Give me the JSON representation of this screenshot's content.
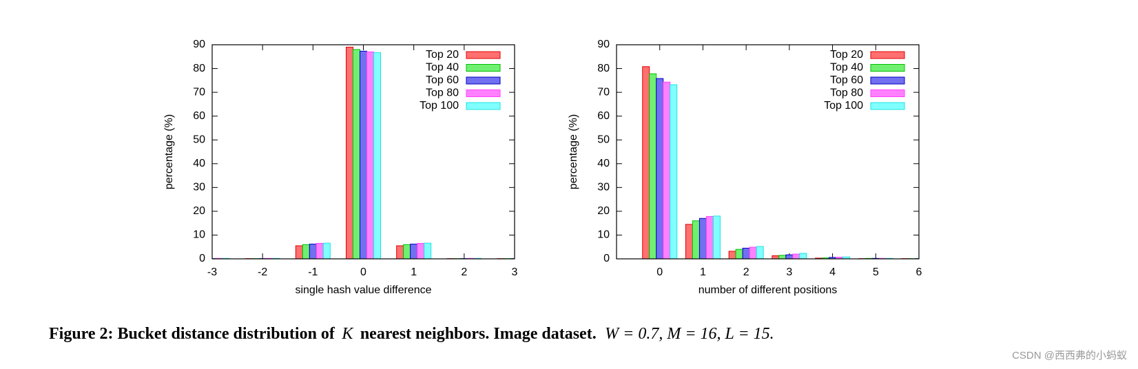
{
  "chart_data": [
    {
      "type": "bar",
      "xlabel": "single hash value difference",
      "ylabel": "percentage (%)",
      "x": [
        -3,
        -2,
        -1,
        0,
        1,
        2,
        3
      ],
      "xlim": [
        -3,
        3
      ],
      "xticks": [
        -3,
        -2,
        -1,
        0,
        1,
        2,
        3
      ],
      "ylim": [
        0,
        90
      ],
      "yticks": [
        0,
        10,
        20,
        30,
        40,
        50,
        60,
        70,
        80,
        90
      ],
      "legend": "top-right",
      "series": [
        {
          "name": "Top 20",
          "color": "#ff7070",
          "edge": "#e00000",
          "values": [
            0.1,
            0.1,
            5.5,
            89,
            5.5,
            0.1,
            0.1
          ]
        },
        {
          "name": "Top 40",
          "color": "#70f070",
          "edge": "#00c000",
          "values": [
            0.1,
            0.1,
            6,
            88,
            6,
            0.1,
            0.1
          ]
        },
        {
          "name": "Top 60",
          "color": "#7070f0",
          "edge": "#0000c0",
          "values": [
            0.1,
            0.1,
            6.2,
            87.3,
            6.2,
            0.1,
            0.1
          ]
        },
        {
          "name": "Top 80",
          "color": "#ff80ff",
          "edge": "#ff40ff",
          "values": [
            0.2,
            0.2,
            6.5,
            87,
            6.5,
            0.2,
            0.2
          ]
        },
        {
          "name": "Top 100",
          "color": "#80ffff",
          "edge": "#20e0e0",
          "values": [
            0.2,
            0.2,
            6.6,
            86.7,
            6.6,
            0.2,
            0.2
          ]
        }
      ]
    },
    {
      "type": "bar",
      "xlabel": "number of different positions",
      "ylabel": "percentage (%)",
      "x": [
        0,
        1,
        2,
        3,
        4,
        5,
        6
      ],
      "xlim": [
        -1,
        6
      ],
      "xticks": [
        0,
        1,
        2,
        3,
        4,
        5,
        6
      ],
      "ylim": [
        0,
        90
      ],
      "yticks": [
        0,
        10,
        20,
        30,
        40,
        50,
        60,
        70,
        80,
        90
      ],
      "legend": "top-right",
      "series": [
        {
          "name": "Top 20",
          "color": "#ff7070",
          "edge": "#e00000",
          "values": [
            80.8,
            14.5,
            3.2,
            1.3,
            0.3,
            0.1,
            0.1
          ]
        },
        {
          "name": "Top 40",
          "color": "#70f070",
          "edge": "#00c000",
          "values": [
            77.8,
            16,
            4,
            1.5,
            0.4,
            0.2,
            0.1
          ]
        },
        {
          "name": "Top 60",
          "color": "#7070f0",
          "edge": "#0000c0",
          "values": [
            75.8,
            17,
            4.5,
            1.7,
            0.6,
            0.2,
            0.1
          ]
        },
        {
          "name": "Top 80",
          "color": "#ff80ff",
          "edge": "#ff40ff",
          "values": [
            74.3,
            17.8,
            4.9,
            2,
            0.7,
            0.2,
            0.1
          ]
        },
        {
          "name": "Top 100",
          "color": "#80ffff",
          "edge": "#20e0e0",
          "values": [
            73.2,
            18,
            5.2,
            2.3,
            0.8,
            0.2,
            0.1
          ]
        }
      ]
    }
  ],
  "caption": {
    "label": "Figure 2: Bucket distance distribution of",
    "k": "K",
    "rest": "nearest neighbors. Image dataset.",
    "params": "W = 0.7, M = 16, L = 15."
  },
  "watermark": "CSDN @西西弗的小蚂蚁"
}
